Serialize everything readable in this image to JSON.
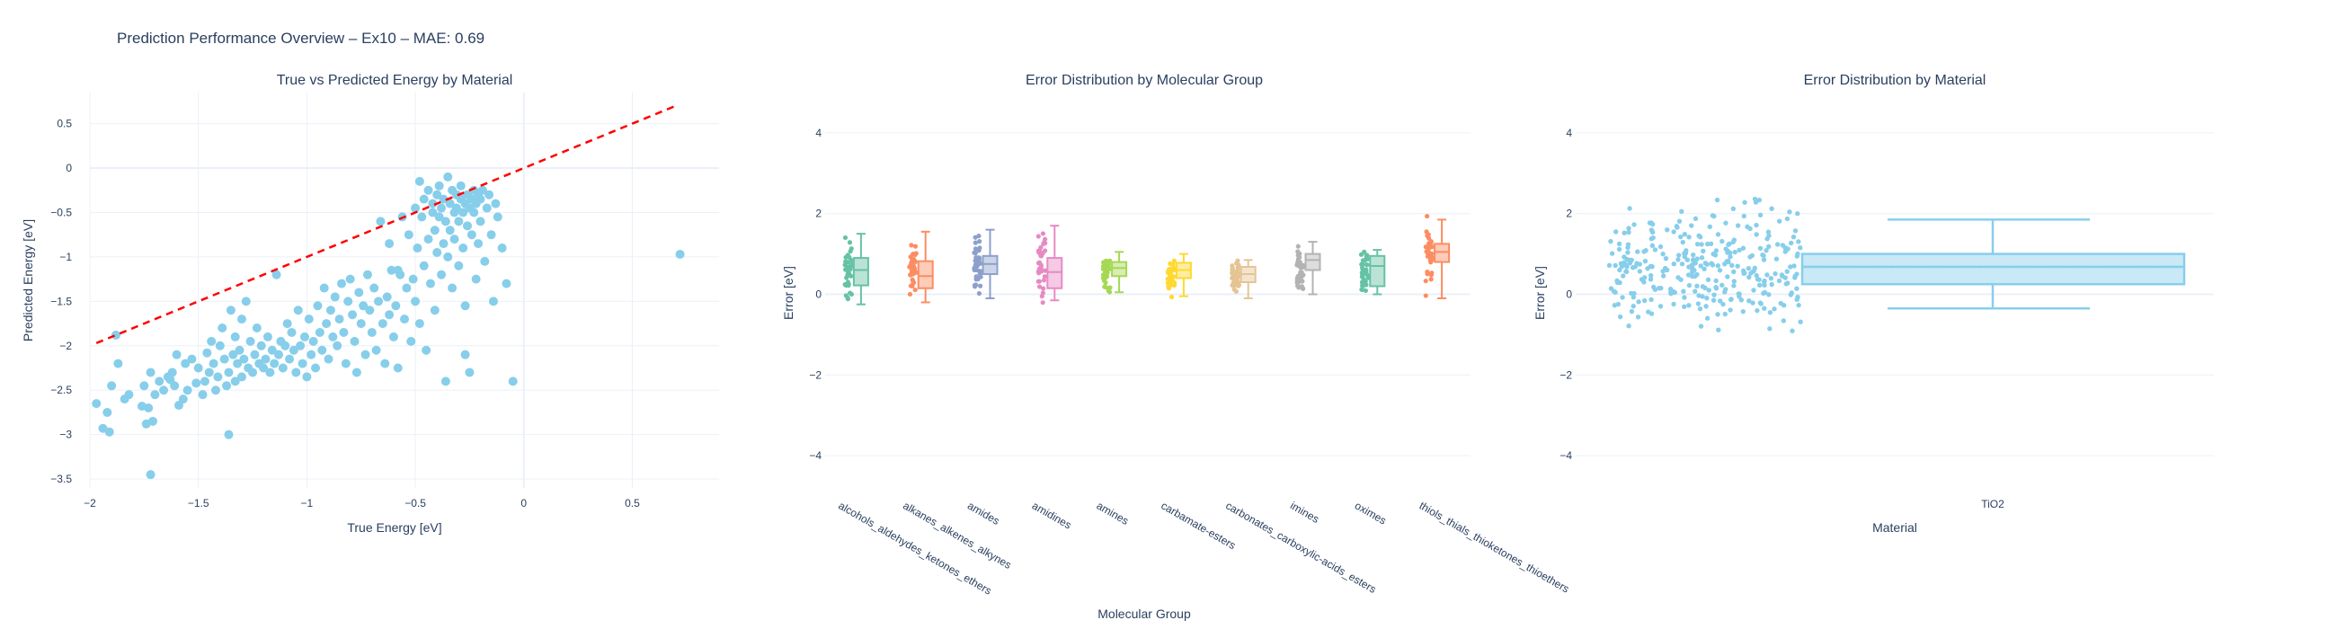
{
  "page_title": "Prediction Performance Overview – Ex10 – MAE: 0.69",
  "chart_data": [
    {
      "type": "scatter",
      "title": "True vs Predicted Energy by Material",
      "xlabel": "True Energy [eV]",
      "ylabel": "Predicted Energy [eV]",
      "xlim": [
        -2.0,
        0.9
      ],
      "ylim": [
        -3.6,
        0.85
      ],
      "xticks": [
        -2,
        -1.5,
        -1,
        -0.5,
        0,
        0.5
      ],
      "xtick_labels": [
        "−2",
        "−1.5",
        "−1",
        "−0.5",
        "0",
        "0.5"
      ],
      "yticks": [
        0.5,
        0,
        -0.5,
        -1,
        -1.5,
        -2,
        -2.5,
        -3,
        -3.5
      ],
      "ytick_labels": [
        "0.5",
        "0",
        "−0.5",
        "−1",
        "−1.5",
        "−2",
        "−2.5",
        "−3",
        "−3.5"
      ],
      "grid": true,
      "point_color": "#87ceeb",
      "reference_line": {
        "x": [
          -1.97,
          0.7
        ],
        "y": [
          -1.97,
          0.7
        ],
        "color": "#ff0000",
        "style": "dashed"
      },
      "points": [
        [
          -1.97,
          -2.65
        ],
        [
          -1.94,
          -2.93
        ],
        [
          -1.92,
          -2.75
        ],
        [
          -1.91,
          -2.97
        ],
        [
          -1.9,
          -2.45
        ],
        [
          -1.88,
          -1.88
        ],
        [
          -1.87,
          -2.2
        ],
        [
          -1.84,
          -2.6
        ],
        [
          -1.82,
          -2.55
        ],
        [
          -1.76,
          -2.68
        ],
        [
          -1.75,
          -2.45
        ],
        [
          -1.74,
          -2.88
        ],
        [
          -1.73,
          -2.7
        ],
        [
          -1.72,
          -2.3
        ],
        [
          -1.72,
          -3.45
        ],
        [
          -1.71,
          -2.85
        ],
        [
          -1.7,
          -2.55
        ],
        [
          -1.68,
          -2.4
        ],
        [
          -1.66,
          -2.5
        ],
        [
          -1.64,
          -2.35
        ],
        [
          -1.63,
          -2.38
        ],
        [
          -1.62,
          -2.3
        ],
        [
          -1.61,
          -2.45
        ],
        [
          -1.6,
          -2.1
        ],
        [
          -1.59,
          -2.67
        ],
        [
          -1.57,
          -2.6
        ],
        [
          -1.56,
          -2.2
        ],
        [
          -1.55,
          -2.5
        ],
        [
          -1.53,
          -2.15
        ],
        [
          -1.51,
          -2.42
        ],
        [
          -1.5,
          -2.25
        ],
        [
          -1.48,
          -2.55
        ],
        [
          -1.47,
          -2.4
        ],
        [
          -1.46,
          -2.08
        ],
        [
          -1.45,
          -2.3
        ],
        [
          -1.44,
          -1.95
        ],
        [
          -1.43,
          -2.2
        ],
        [
          -1.42,
          -2.5
        ],
        [
          -1.41,
          -2.35
        ],
        [
          -1.4,
          -2.0
        ],
        [
          -1.39,
          -1.8
        ],
        [
          -1.38,
          -2.15
        ],
        [
          -1.37,
          -2.45
        ],
        [
          -1.36,
          -2.3
        ],
        [
          -1.36,
          -3.0
        ],
        [
          -1.35,
          -1.6
        ],
        [
          -1.34,
          -2.1
        ],
        [
          -1.33,
          -1.9
        ],
        [
          -1.33,
          -2.4
        ],
        [
          -1.32,
          -2.2
        ],
        [
          -1.31,
          -2.05
        ],
        [
          -1.3,
          -1.7
        ],
        [
          -1.3,
          -2.35
        ],
        [
          -1.29,
          -2.15
        ],
        [
          -1.28,
          -1.5
        ],
        [
          -1.27,
          -2.25
        ],
        [
          -1.26,
          -1.95
        ],
        [
          -1.25,
          -2.3
        ],
        [
          -1.24,
          -2.1
        ],
        [
          -1.23,
          -1.8
        ],
        [
          -1.22,
          -2.2
        ],
        [
          -1.21,
          -2.0
        ],
        [
          -1.2,
          -2.25
        ],
        [
          -1.19,
          -2.15
        ],
        [
          -1.18,
          -1.9
        ],
        [
          -1.17,
          -2.3
        ],
        [
          -1.16,
          -2.05
        ],
        [
          -1.15,
          -2.2
        ],
        [
          -1.14,
          -1.2
        ],
        [
          -1.13,
          -2.1
        ],
        [
          -1.12,
          -1.95
        ],
        [
          -1.11,
          -2.25
        ],
        [
          -1.1,
          -2.0
        ],
        [
          -1.09,
          -1.75
        ],
        [
          -1.08,
          -2.15
        ],
        [
          -1.07,
          -1.85
        ],
        [
          -1.06,
          -2.05
        ],
        [
          -1.05,
          -2.3
        ],
        [
          -1.04,
          -1.6
        ],
        [
          -1.03,
          -2.0
        ],
        [
          -1.02,
          -2.2
        ],
        [
          -1.01,
          -1.9
        ],
        [
          -1.0,
          -2.35
        ],
        [
          -0.99,
          -1.7
        ],
        [
          -0.98,
          -2.1
        ],
        [
          -0.97,
          -1.95
        ],
        [
          -0.96,
          -2.25
        ],
        [
          -0.95,
          -1.55
        ],
        [
          -0.94,
          -1.85
        ],
        [
          -0.93,
          -2.05
        ],
        [
          -0.92,
          -1.35
        ],
        [
          -0.91,
          -1.75
        ],
        [
          -0.9,
          -2.15
        ],
        [
          -0.89,
          -1.6
        ],
        [
          -0.88,
          -1.9
        ],
        [
          -0.87,
          -1.45
        ],
        [
          -0.86,
          -2.0
        ],
        [
          -0.85,
          -1.7
        ],
        [
          -0.84,
          -1.3
        ],
        [
          -0.83,
          -1.85
        ],
        [
          -0.82,
          -2.2
        ],
        [
          -0.81,
          -1.5
        ],
        [
          -0.8,
          -1.25
        ],
        [
          -0.79,
          -1.65
        ],
        [
          -0.78,
          -1.95
        ],
        [
          -0.77,
          -2.3
        ],
        [
          -0.76,
          -1.4
        ],
        [
          -0.75,
          -1.75
        ],
        [
          -0.74,
          -1.55
        ],
        [
          -0.73,
          -2.1
        ],
        [
          -0.72,
          -1.2
        ],
        [
          -0.71,
          -1.6
        ],
        [
          -0.7,
          -1.85
        ],
        [
          -0.69,
          -1.35
        ],
        [
          -0.68,
          -2.05
        ],
        [
          -0.67,
          -1.5
        ],
        [
          -0.66,
          -0.6
        ],
        [
          -0.65,
          -1.75
        ],
        [
          -0.64,
          -2.2
        ],
        [
          -0.63,
          -1.45
        ],
        [
          -0.62,
          -1.65
        ],
        [
          -0.61,
          -1.15
        ],
        [
          -0.6,
          -1.9
        ],
        [
          -0.59,
          -1.55
        ],
        [
          -0.58,
          -2.25
        ],
        [
          -0.57,
          -1.2
        ],
        [
          -0.56,
          -0.55
        ],
        [
          -0.55,
          -1.7
        ],
        [
          -0.54,
          -1.35
        ],
        [
          -0.53,
          -0.75
        ],
        [
          -0.52,
          -1.95
        ],
        [
          -0.51,
          -1.25
        ],
        [
          -0.5,
          -0.45
        ],
        [
          -0.5,
          -1.5
        ],
        [
          -0.49,
          -0.9
        ],
        [
          -0.48,
          -0.15
        ],
        [
          -0.48,
          -1.75
        ],
        [
          -0.47,
          -0.55
        ],
        [
          -0.46,
          -1.1
        ],
        [
          -0.46,
          -0.35
        ],
        [
          -0.45,
          -2.05
        ],
        [
          -0.44,
          -0.25
        ],
        [
          -0.44,
          -0.8
        ],
        [
          -0.43,
          -1.3
        ],
        [
          -0.42,
          -0.5
        ],
        [
          -0.42,
          -0.4
        ],
        [
          -0.41,
          -1.6
        ],
        [
          -0.41,
          -0.7
        ],
        [
          -0.4,
          -0.3
        ],
        [
          -0.4,
          -0.95
        ],
        [
          -0.39,
          -0.55
        ],
        [
          -0.39,
          -0.2
        ],
        [
          -0.38,
          -1.2
        ],
        [
          -0.38,
          -0.45
        ],
        [
          -0.37,
          -0.85
        ],
        [
          -0.37,
          -0.35
        ],
        [
          -0.36,
          -2.4
        ],
        [
          -0.36,
          -0.6
        ],
        [
          -0.35,
          -0.1
        ],
        [
          -0.35,
          -1.0
        ],
        [
          -0.34,
          -0.4
        ],
        [
          -0.34,
          -0.7
        ],
        [
          -0.33,
          -0.25
        ],
        [
          -0.33,
          -1.35
        ],
        [
          -0.32,
          -0.5
        ],
        [
          -0.32,
          -0.8
        ],
        [
          -0.31,
          -0.3
        ],
        [
          -0.31,
          -0.45
        ],
        [
          -0.3,
          -1.1
        ],
        [
          -0.3,
          -0.6
        ],
        [
          -0.29,
          -0.35
        ],
        [
          -0.29,
          -0.2
        ],
        [
          -0.28,
          -0.9
        ],
        [
          -0.28,
          -0.5
        ],
        [
          -0.27,
          -0.4
        ],
        [
          -0.27,
          -1.55
        ],
        [
          -0.26,
          -0.3
        ],
        [
          -0.26,
          -0.65
        ],
        [
          -0.25,
          -2.3
        ],
        [
          -0.25,
          -0.45
        ],
        [
          -0.24,
          -0.35
        ],
        [
          -0.24,
          -0.75
        ],
        [
          -0.23,
          -0.25
        ],
        [
          -0.23,
          -0.5
        ],
        [
          -0.22,
          -1.25
        ],
        [
          -0.22,
          -0.4
        ],
        [
          -0.21,
          -0.3
        ],
        [
          -0.21,
          -0.85
        ],
        [
          -0.2,
          -0.35
        ],
        [
          -0.2,
          -0.6
        ],
        [
          -0.19,
          -0.25
        ],
        [
          -0.18,
          -1.05
        ],
        [
          -0.17,
          -0.45
        ],
        [
          -0.16,
          -0.3
        ],
        [
          -0.15,
          -0.75
        ],
        [
          -0.14,
          -1.5
        ],
        [
          -0.13,
          -0.4
        ],
        [
          -0.12,
          -0.55
        ],
        [
          -0.1,
          -0.9
        ],
        [
          -0.08,
          -1.3
        ],
        [
          -0.05,
          -2.4
        ],
        [
          -0.27,
          -2.1
        ],
        [
          -0.58,
          -1.15
        ],
        [
          -0.62,
          -0.85
        ],
        [
          0.72,
          -0.97
        ]
      ]
    },
    {
      "type": "box",
      "title": "Error Distribution by Molecular Group",
      "xlabel": "Molecular Group",
      "ylabel": "Error [eV]",
      "ylim": [
        -4.8,
        5.0
      ],
      "yticks": [
        4,
        2,
        0,
        -2,
        -4
      ],
      "ytick_labels": [
        "4",
        "2",
        "0",
        "−2",
        "−4"
      ],
      "grid": true,
      "groups": [
        {
          "name": "alcohols_aldehydes_ketones_ethers",
          "color": "#66c2a5",
          "min": -0.25,
          "q1": 0.22,
          "median": 0.6,
          "q3": 0.9,
          "max": 1.5
        },
        {
          "name": "alkanes_alkenes_alkynes",
          "color": "#fc8d62",
          "min": -0.2,
          "q1": 0.15,
          "median": 0.45,
          "q3": 0.82,
          "max": 1.55
        },
        {
          "name": "amides",
          "color": "#8da0cb",
          "min": -0.1,
          "q1": 0.5,
          "median": 0.75,
          "q3": 0.95,
          "max": 1.6
        },
        {
          "name": "amidines",
          "color": "#e78ac3",
          "min": -0.15,
          "q1": 0.15,
          "median": 0.55,
          "q3": 0.9,
          "max": 1.7
        },
        {
          "name": "amines",
          "color": "#a6d854",
          "min": 0.05,
          "q1": 0.45,
          "median": 0.65,
          "q3": 0.8,
          "max": 1.05
        },
        {
          "name": "carbamate-esters",
          "color": "#ffd92f",
          "min": -0.05,
          "q1": 0.4,
          "median": 0.6,
          "q3": 0.78,
          "max": 1.0
        },
        {
          "name": "carbonates_carboxylic-acids_esters",
          "color": "#e5c494",
          "min": -0.1,
          "q1": 0.3,
          "median": 0.5,
          "q3": 0.68,
          "max": 0.85
        },
        {
          "name": "imines",
          "color": "#b3b3b3",
          "min": 0.0,
          "q1": 0.6,
          "median": 0.85,
          "q3": 1.0,
          "max": 1.3
        },
        {
          "name": "oximes",
          "color": "#66c2a5",
          "min": 0.0,
          "q1": 0.2,
          "median": 0.7,
          "q3": 0.95,
          "max": 1.1
        },
        {
          "name": "thiols_thials_thioketones_thioethers",
          "color": "#fc8d62",
          "min": -0.1,
          "q1": 0.8,
          "median": 1.05,
          "q3": 1.25,
          "max": 1.85
        }
      ]
    },
    {
      "type": "box",
      "title": "Error Distribution by Material",
      "xlabel": "Material",
      "ylabel": "Error [eV]",
      "ylim": [
        -4.8,
        5.0
      ],
      "yticks": [
        4,
        2,
        0,
        -2,
        -4
      ],
      "ytick_labels": [
        "4",
        "2",
        "0",
        "−2",
        "−4"
      ],
      "grid": true,
      "groups": [
        {
          "name": "TiO2",
          "color": "#87ceeb",
          "min": -0.35,
          "q1": 0.25,
          "median": 0.68,
          "mean": 0.69,
          "q3": 1.0,
          "max": 1.85
        }
      ]
    }
  ]
}
